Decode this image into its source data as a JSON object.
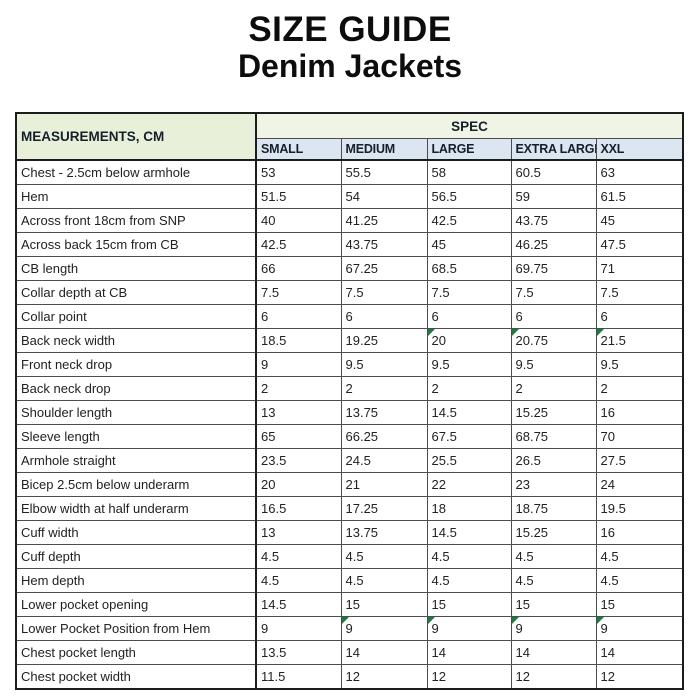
{
  "title": {
    "line1": "SIZE GUIDE",
    "line2": "Denim Jackets"
  },
  "table": {
    "corner_header": "MEASUREMENTS, CM",
    "spec_header": "SPEC",
    "size_headers": [
      "SMALL",
      "MEDIUM",
      "LARGE",
      "EXTRA LARGE",
      "XXL"
    ],
    "rows": [
      {
        "label": "Chest - 2.5cm below armhole",
        "values": [
          "53",
          "55.5",
          "58",
          "60.5",
          "63"
        ],
        "markers": []
      },
      {
        "label": "Hem",
        "values": [
          "51.5",
          "54",
          "56.5",
          "59",
          "61.5"
        ],
        "markers": []
      },
      {
        "label": "Across front 18cm from SNP",
        "values": [
          "40",
          "41.25",
          "42.5",
          "43.75",
          "45"
        ],
        "markers": []
      },
      {
        "label": "Across back 15cm from CB",
        "values": [
          "42.5",
          "43.75",
          "45",
          "46.25",
          "47.5"
        ],
        "markers": []
      },
      {
        "label": "CB length",
        "values": [
          "66",
          "67.25",
          "68.5",
          "69.75",
          "71"
        ],
        "markers": []
      },
      {
        "label": "Collar depth at CB",
        "values": [
          "7.5",
          "7.5",
          "7.5",
          "7.5",
          "7.5"
        ],
        "markers": []
      },
      {
        "label": "Collar point",
        "values": [
          "6",
          "6",
          "6",
          "6",
          "6"
        ],
        "markers": []
      },
      {
        "label": "Back neck width",
        "values": [
          "18.5",
          "19.25",
          "20",
          "20.75",
          "21.5"
        ],
        "markers": [
          2,
          3,
          4
        ]
      },
      {
        "label": "Front neck drop",
        "values": [
          "9",
          "9.5",
          "9.5",
          "9.5",
          "9.5"
        ],
        "markers": []
      },
      {
        "label": "Back neck drop",
        "values": [
          "2",
          "2",
          "2",
          "2",
          "2"
        ],
        "markers": []
      },
      {
        "label": "Shoulder length",
        "values": [
          "13",
          "13.75",
          "14.5",
          "15.25",
          "16"
        ],
        "markers": []
      },
      {
        "label": "Sleeve length",
        "values": [
          "65",
          "66.25",
          "67.5",
          "68.75",
          "70"
        ],
        "markers": []
      },
      {
        "label": "Armhole straight",
        "values": [
          "23.5",
          "24.5",
          "25.5",
          "26.5",
          "27.5"
        ],
        "markers": []
      },
      {
        "label": "Bicep 2.5cm below underarm",
        "values": [
          "20",
          "21",
          "22",
          "23",
          "24"
        ],
        "markers": []
      },
      {
        "label": "Elbow width at half underarm",
        "values": [
          "16.5",
          "17.25",
          "18",
          "18.75",
          "19.5"
        ],
        "markers": []
      },
      {
        "label": "Cuff width",
        "values": [
          "13",
          "13.75",
          "14.5",
          "15.25",
          "16"
        ],
        "markers": []
      },
      {
        "label": "Cuff depth",
        "values": [
          "4.5",
          "4.5",
          "4.5",
          "4.5",
          "4.5"
        ],
        "markers": []
      },
      {
        "label": "Hem depth",
        "values": [
          "4.5",
          "4.5",
          "4.5",
          "4.5",
          "4.5"
        ],
        "markers": []
      },
      {
        "label": "Lower pocket opening",
        "values": [
          "14.5",
          "15",
          "15",
          "15",
          "15"
        ],
        "markers": []
      },
      {
        "label": "Lower Pocket Position from Hem",
        "values": [
          "9",
          "9",
          "9",
          "9",
          "9"
        ],
        "markers": [
          1,
          2,
          3,
          4
        ]
      },
      {
        "label": "Chest pocket length",
        "values": [
          "13.5",
          "14",
          "14",
          "14",
          "14"
        ],
        "markers": []
      },
      {
        "label": "Chest pocket width",
        "values": [
          "11.5",
          "12",
          "12",
          "12",
          "12"
        ],
        "markers": []
      }
    ]
  },
  "colors": {
    "corner_header_bg": "#e9f0da",
    "spec_header_bg": "#f0f4e4",
    "size_header_bg": "#dce6f1",
    "comment_marker_green": "#1e7b3c",
    "grid_line": "#4d4d4d",
    "outer_border": "#1c1c1c"
  }
}
